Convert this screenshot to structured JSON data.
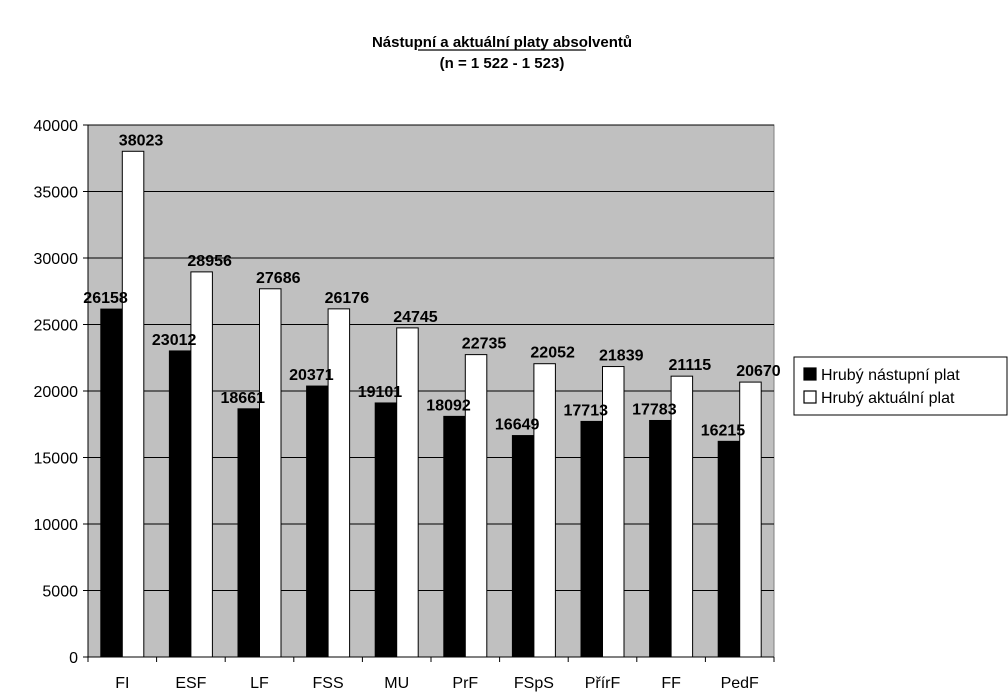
{
  "chart_data": {
    "type": "bar",
    "title": "Nástupní a aktuální platy absolventů",
    "subtitle": "(n = 1 522 - 1 523)",
    "categories": [
      "FI",
      "ESF",
      "LF",
      "FSS",
      "MU",
      "PrF",
      "FSpS",
      "PřírF",
      "FF",
      "PedF"
    ],
    "series": [
      {
        "name": "Hrubý nástupní plat",
        "color": "#000000",
        "values": [
          26158,
          23012,
          18661,
          20371,
          19101,
          18092,
          16649,
          17713,
          17783,
          16215
        ]
      },
      {
        "name": "Hrubý aktuální plat",
        "color": "#ffffff",
        "values": [
          38023,
          28956,
          27686,
          26176,
          24745,
          22735,
          22052,
          21839,
          21115,
          20670
        ]
      }
    ],
    "ylim": [
      0,
      40000
    ],
    "yticks": [
      0,
      5000,
      10000,
      15000,
      20000,
      25000,
      30000,
      35000,
      40000
    ],
    "grid": true,
    "plot_background": "#c0c0c0",
    "legend_position": "right"
  }
}
